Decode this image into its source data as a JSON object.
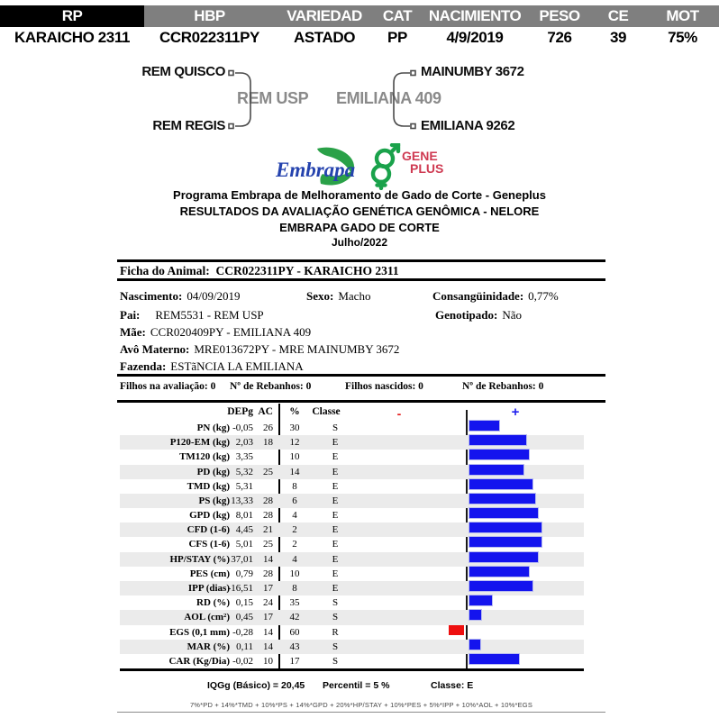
{
  "header": {
    "columns": [
      {
        "label": "RP",
        "value": "KARAICHO 2311"
      },
      {
        "label": "HBP",
        "value": "CCR022311PY"
      },
      {
        "label": "VARIEDAD",
        "value": "ASTADO"
      },
      {
        "label": "CAT",
        "value": "PP"
      },
      {
        "label": "NACIMIENTO",
        "value": "4/9/2019"
      },
      {
        "label": "PESO",
        "value": "726"
      },
      {
        "label": "CE",
        "value": "39"
      },
      {
        "label": "MOT",
        "value": "75%"
      }
    ]
  },
  "pedigree": {
    "sire": "REM USP",
    "sire_sire": "REM QUISCO",
    "sire_dam": "REM REGIS",
    "dam": "EMILIANA 409",
    "dam_sire": "MAINUMBY 3672",
    "dam_dam": "EMILIANA 9262"
  },
  "logos": {
    "embrapa_text": "Embrapa",
    "geneplus_top": "GENE",
    "geneplus_bottom": "PLUS"
  },
  "titles": {
    "line1": "Programa Embrapa de Melhoramento de Gado de Corte - Geneplus",
    "line2": "RESULTADOS DA AVALIAÇÃO GENÉTICA GENÔMICA - NELORE",
    "line3": "EMBRAPA GADO DE CORTE",
    "line4": "Julho/2022"
  },
  "ficha": {
    "title_label": "Ficha do Animal:",
    "title_value": "CCR022311PY - KARAICHO 2311",
    "nascimento_label": "Nascimento:",
    "nascimento": "04/09/2019",
    "sexo_label": "Sexo:",
    "sexo": "Macho",
    "consang_label": "Consangüinidade:",
    "consang": "0,77%",
    "pai_label": "Pai:",
    "pai": "REM5531 - REM USP",
    "genotipado_label": "Genotipado:",
    "genotipado": "Não",
    "mae_label": "Mãe:",
    "mae": "CCR020409PY - EMILIANA 409",
    "avo_label": "Avô Materno:",
    "avo": "MRE013672PY - MRE MAINUMBY 3672",
    "fazenda_label": "Fazenda:",
    "fazenda": "ESTãNCIA LA EMILIANA"
  },
  "stats": {
    "items": [
      {
        "label": "Filhos na avaliação:",
        "value": "0"
      },
      {
        "label": "Nº de Rebanhos:",
        "value": "0"
      },
      {
        "label": "Filhos nascidos:",
        "value": "0"
      },
      {
        "label": "Nº de Rebanhos:",
        "value": "0"
      }
    ]
  },
  "chart_data": {
    "type": "bar",
    "orientation": "horizontal-diverging",
    "axis_note": "bars extend right (blue, +) for percentile below 50, left (red, -) for percentile above 50; bar length ~ (50 - percentile)",
    "columns": [
      "DEPg",
      "AC",
      "%",
      "Classe"
    ],
    "minus_symbol": "-",
    "plus_symbol": "+",
    "colors": {
      "positive_bar": "#1414ee",
      "negative_bar": "#ee0f0f",
      "stripe": "#ebebeb"
    },
    "rows": [
      {
        "trait": "PN (kg)",
        "depg": "-0,05",
        "ac": "26",
        "pct": 30,
        "classe": "S"
      },
      {
        "trait": "P120-EM (kg)",
        "depg": "2,03",
        "ac": "18",
        "pct": 12,
        "classe": "E"
      },
      {
        "trait": "TM120 (kg)",
        "depg": "3,35",
        "ac": "",
        "pct": 10,
        "classe": "E"
      },
      {
        "trait": "PD (kg)",
        "depg": "5,32",
        "ac": "25",
        "pct": 14,
        "classe": "E"
      },
      {
        "trait": "TMD (kg)",
        "depg": "5,31",
        "ac": "",
        "pct": 8,
        "classe": "E"
      },
      {
        "trait": "PS (kg)",
        "depg": "13,33",
        "ac": "28",
        "pct": 6,
        "classe": "E"
      },
      {
        "trait": "GPD (kg)",
        "depg": "8,01",
        "ac": "28",
        "pct": 4,
        "classe": "E"
      },
      {
        "trait": "CFD (1-6)",
        "depg": "4,45",
        "ac": "21",
        "pct": 2,
        "classe": "E"
      },
      {
        "trait": "CFS (1-6)",
        "depg": "5,01",
        "ac": "25",
        "pct": 2,
        "classe": "E"
      },
      {
        "trait": "HP/STAY (%)",
        "depg": "37,01",
        "ac": "14",
        "pct": 4,
        "classe": "E"
      },
      {
        "trait": "PES (cm)",
        "depg": "0,79",
        "ac": "28",
        "pct": 10,
        "classe": "E"
      },
      {
        "trait": "IPP (dias)",
        "depg": "-16,51",
        "ac": "17",
        "pct": 8,
        "classe": "E"
      },
      {
        "trait": "RD (%)",
        "depg": "0,15",
        "ac": "24",
        "pct": 35,
        "classe": "S"
      },
      {
        "trait": "AOL (cm²)",
        "depg": "0,45",
        "ac": "17",
        "pct": 42,
        "classe": "S"
      },
      {
        "trait": "EGS (0,1 mm)",
        "depg": "-0,28",
        "ac": "14",
        "pct": 60,
        "classe": "R"
      },
      {
        "trait": "MAR (%)",
        "depg": "0,11",
        "ac": "14",
        "pct": 43,
        "classe": "S"
      },
      {
        "trait": "CAR (Kg/Dia)",
        "depg": "-0,02",
        "ac": "10",
        "pct": 17,
        "classe": "S"
      }
    ]
  },
  "footer": {
    "iqgg": "IQGg (Básico) = 20,45",
    "percentil": "Percentil = 5 %",
    "classe": "Classe: E",
    "formula": "7%*PD + 14%*TMD + 10%*PS + 14%*GPD + 20%*HP/STAY + 10%*PES + 5%*IPP + 10%*AOL + 10%*EGS"
  }
}
